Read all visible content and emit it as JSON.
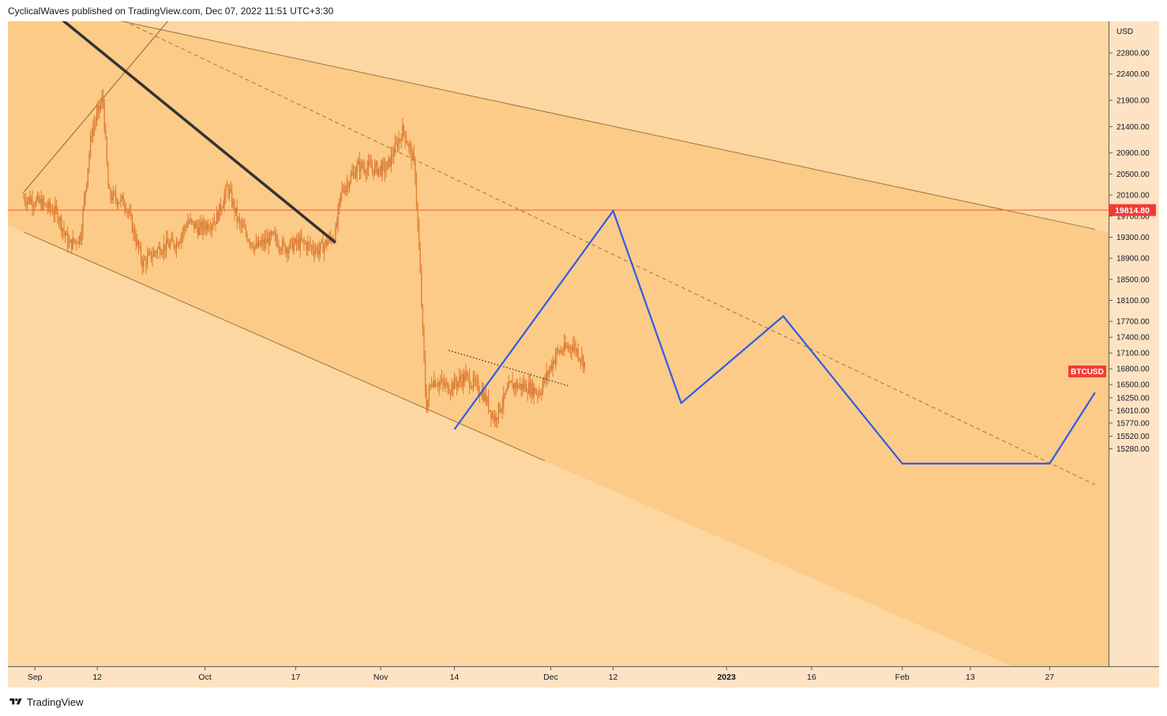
{
  "header": {
    "published": "CyclicalWaves published on TradingView.com, Dec 07, 2022 11:51 UTC+3:30"
  },
  "footer": {
    "brand": "TradingView",
    "logo_icon": "tradingview-logo-icon"
  },
  "colors": {
    "chart_bg": "#fccb87",
    "channel_light": "#fdd7a2",
    "axis_bg": "#fde3c4",
    "candle": "#e07a2e",
    "price_line": "#f7703f",
    "projection": "#2f5be8",
    "trendline": "#333333",
    "channel_line": "#9a7540",
    "badge_red": "#f23b38"
  },
  "chart_data": {
    "type": "line",
    "symbol": "BTCUSD",
    "currency": "USD",
    "ylim": [
      15100,
      23200
    ],
    "y_ticks": [
      "22800.00",
      "22400.00",
      "21900.00",
      "21400.00",
      "20900.00",
      "20500.00",
      "20100.00",
      "19700.00",
      "19300.00",
      "18900.00",
      "18500.00",
      "18100.00",
      "17700.00",
      "17400.00",
      "17100.00",
      "16800.00",
      "16500.00",
      "16250.00",
      "16010.00",
      "15770.00",
      "15520.00",
      "15280.00"
    ],
    "x_ticks": [
      {
        "label": "Sep",
        "date": "2022-09-01",
        "bold": false
      },
      {
        "label": "12",
        "date": "2022-09-12",
        "bold": false
      },
      {
        "label": "Oct",
        "date": "2022-10-01",
        "bold": false
      },
      {
        "label": "17",
        "date": "2022-10-17",
        "bold": false
      },
      {
        "label": "Nov",
        "date": "2022-11-01",
        "bold": false
      },
      {
        "label": "14",
        "date": "2022-11-14",
        "bold": false
      },
      {
        "label": "Dec",
        "date": "2022-12-01",
        "bold": false
      },
      {
        "label": "12",
        "date": "2022-12-12",
        "bold": false
      },
      {
        "label": "2023",
        "date": "2023-01-01",
        "bold": true
      },
      {
        "label": "16",
        "date": "2023-01-16",
        "bold": false
      },
      {
        "label": "Feb",
        "date": "2023-02-01",
        "bold": false
      },
      {
        "label": "13",
        "date": "2023-02-13",
        "bold": false
      },
      {
        "label": "27",
        "date": "2023-02-27",
        "bold": false
      }
    ],
    "horizontal_line": {
      "value": 19814.8,
      "label": "19814.80"
    },
    "last_price_badge": {
      "label": "BTCUSD",
      "value": 16750
    },
    "price_series": {
      "dates": [
        "2022-08-30",
        "2022-09-02",
        "2022-09-05",
        "2022-09-07",
        "2022-09-09",
        "2022-09-11",
        "2022-09-13",
        "2022-09-14",
        "2022-09-17",
        "2022-09-20",
        "2022-09-23",
        "2022-09-26",
        "2022-09-28",
        "2022-09-30",
        "2022-10-03",
        "2022-10-05",
        "2022-10-07",
        "2022-10-10",
        "2022-10-13",
        "2022-10-15",
        "2022-10-18",
        "2022-10-21",
        "2022-10-24",
        "2022-10-25",
        "2022-10-28",
        "2022-10-31",
        "2022-11-02",
        "2022-11-05",
        "2022-11-07",
        "2022-11-08",
        "2022-11-09",
        "2022-11-10",
        "2022-11-13",
        "2022-11-16",
        "2022-11-19",
        "2022-11-21",
        "2022-11-24",
        "2022-11-27",
        "2022-11-29",
        "2022-12-02",
        "2022-12-05",
        "2022-12-07"
      ],
      "values": [
        20050,
        19950,
        19750,
        19150,
        19300,
        21300,
        21950,
        20100,
        19950,
        18800,
        19100,
        19200,
        19600,
        19450,
        19650,
        20250,
        19550,
        19100,
        19300,
        19100,
        19200,
        19050,
        19350,
        20150,
        20650,
        20600,
        20600,
        21350,
        20650,
        18500,
        16050,
        16600,
        16450,
        16650,
        16350,
        15850,
        16500,
        16450,
        16350,
        17100,
        17250,
        16900
      ]
    },
    "channel": {
      "upper_start": {
        "date": "2022-08-30",
        "value": 23800
      },
      "upper_end": {
        "date": "2023-03-07",
        "value": 19450
      },
      "mid_start": {
        "date": "2022-09-11",
        "value": 23700
      },
      "mid_end": {
        "date": "2023-03-07",
        "value": 14600
      },
      "lower_start": {
        "date": "2022-08-30",
        "value": 19400
      },
      "lower_end": {
        "date": "2022-11-30",
        "value": 15050
      }
    },
    "rising_line": {
      "start": {
        "date": "2022-08-30",
        "value": 20150
      },
      "end": {
        "date": "2022-09-26",
        "value": 23600
      }
    },
    "down_trendline": {
      "start": {
        "date": "2022-09-05",
        "value": 23500
      },
      "end": {
        "date": "2022-10-24",
        "value": 19200
      }
    },
    "dotted_resistance": {
      "start": {
        "date": "2022-11-13",
        "value": 17150
      },
      "end": {
        "date": "2022-12-04",
        "value": 16480
      }
    },
    "projection": {
      "name": "",
      "dates": [
        "2022-11-14",
        "2022-12-12",
        "2022-12-24",
        "2023-01-11",
        "2023-02-01",
        "2023-02-27",
        "2023-03-07"
      ],
      "values": [
        15650,
        19800,
        16150,
        17800,
        15000,
        15000,
        16350
      ]
    }
  }
}
